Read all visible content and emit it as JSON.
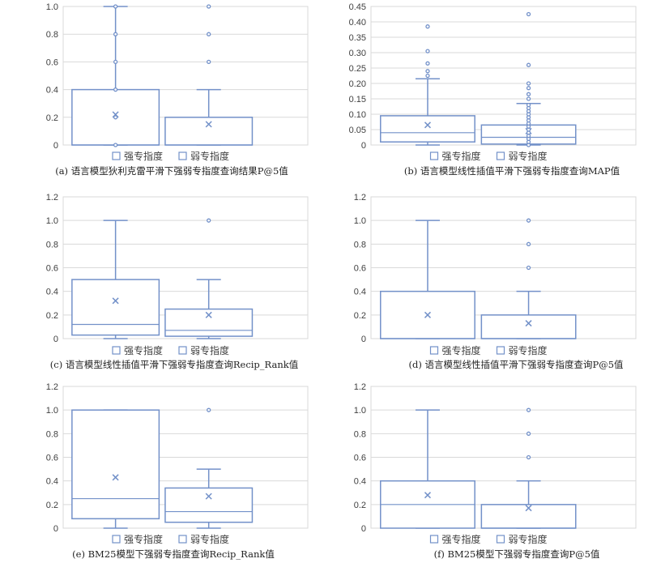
{
  "style": {
    "series_color": "#7391c9",
    "grid_color": "#d9d9d9",
    "text_color": "#404040"
  },
  "chart_data": [
    {
      "type": "box",
      "caption": "(a) 语言模型狄利克雷平滑下强弱专指度查询结果P@5值",
      "ylim": [
        0,
        1.0
      ],
      "yticks": [
        "0",
        "0.2",
        "0.4",
        "0.6",
        "0.8",
        "1.0"
      ],
      "legend": [
        "强专指度",
        "弱专指度"
      ],
      "series": [
        {
          "name": "强专指度",
          "min": 0,
          "q1": 0,
          "median": 0,
          "q3": 0.4,
          "max": 1.0,
          "mean": 0.22,
          "outliers": [
            0,
            0.2,
            0.4,
            0.6,
            0.8,
            1.0
          ]
        },
        {
          "name": "弱专指度",
          "min": 0,
          "q1": 0,
          "median": 0,
          "q3": 0.2,
          "max": 0.4,
          "mean": 0.15,
          "outliers": [
            0.6,
            0.8,
            1.0
          ]
        }
      ]
    },
    {
      "type": "box",
      "caption": "(b) 语言模型线性插值平滑下强弱专指度查询MAP值",
      "ylim": [
        0,
        0.45
      ],
      "yticks": [
        "0",
        "0.05",
        "0.10",
        "0.15",
        "0.20",
        "0.25",
        "0.30",
        "0.35",
        "0.40",
        "0.45"
      ],
      "legend": [
        "强专指度",
        "弱专指度"
      ],
      "series": [
        {
          "name": "强专指度",
          "min": 0,
          "q1": 0.01,
          "median": 0.04,
          "q3": 0.095,
          "max": 0.215,
          "mean": 0.065,
          "outliers": [
            0.225,
            0.24,
            0.265,
            0.305,
            0.385
          ]
        },
        {
          "name": "弱专指度",
          "min": 0,
          "q1": 0.003,
          "median": 0.025,
          "q3": 0.065,
          "max": 0.135,
          "mean": 0.045,
          "outliers": [
            0,
            0.01,
            0.02,
            0.03,
            0.04,
            0.05,
            0.06,
            0.07,
            0.08,
            0.09,
            0.1,
            0.11,
            0.12,
            0.13,
            0.15,
            0.165,
            0.185,
            0.2,
            0.26,
            0.425
          ]
        }
      ]
    },
    {
      "type": "box",
      "caption": "(c) 语言模型线性插值平滑下强弱专指度查询Recip_Rank值",
      "ylim": [
        0,
        1.2
      ],
      "yticks": [
        "0",
        "0.2",
        "0.4",
        "0.6",
        "0.8",
        "1.0",
        "1.2"
      ],
      "legend": [
        "强专指度",
        "弱专指度"
      ],
      "series": [
        {
          "name": "强专指度",
          "min": 0,
          "q1": 0.03,
          "median": 0.12,
          "q3": 0.5,
          "max": 1.0,
          "mean": 0.32,
          "outliers": []
        },
        {
          "name": "弱专指度",
          "min": 0,
          "q1": 0.02,
          "median": 0.07,
          "q3": 0.25,
          "max": 0.5,
          "mean": 0.2,
          "outliers": [
            1.0
          ]
        }
      ]
    },
    {
      "type": "box",
      "caption": "(d) 语言模型线性插值平滑下强弱专指度查询P@5值",
      "ylim": [
        0,
        1.2
      ],
      "yticks": [
        "0",
        "0.2",
        "0.4",
        "0.6",
        "0.8",
        "1.0",
        "1.2"
      ],
      "legend": [
        "强专指度",
        "弱专指度"
      ],
      "series": [
        {
          "name": "强专指度",
          "min": 0,
          "q1": 0,
          "median": 0,
          "q3": 0.4,
          "max": 1.0,
          "mean": 0.2,
          "outliers": []
        },
        {
          "name": "弱专指度",
          "min": 0,
          "q1": 0,
          "median": 0,
          "q3": 0.2,
          "max": 0.4,
          "mean": 0.13,
          "outliers": [
            0.6,
            0.8,
            1.0
          ]
        }
      ]
    },
    {
      "type": "box",
      "caption": "(e) BM25模型下强弱专指度查询Recip_Rank值",
      "ylim": [
        0,
        1.2
      ],
      "yticks": [
        "0",
        "0.2",
        "0.4",
        "0.6",
        "0.8",
        "1.0",
        "1.2"
      ],
      "legend": [
        "强专指度",
        "弱专指度"
      ],
      "series": [
        {
          "name": "强专指度",
          "min": 0,
          "q1": 0.08,
          "median": 0.25,
          "q3": 1.0,
          "max": 1.0,
          "mean": 0.43,
          "outliers": []
        },
        {
          "name": "弱专指度",
          "min": 0,
          "q1": 0.05,
          "median": 0.14,
          "q3": 0.34,
          "max": 0.5,
          "mean": 0.27,
          "outliers": [
            1.0
          ]
        }
      ]
    },
    {
      "type": "box",
      "caption": "(f) BM25模型下强弱专指度查询P@5值",
      "ylim": [
        0,
        1.2
      ],
      "yticks": [
        "0",
        "0.2",
        "0.4",
        "0.6",
        "0.8",
        "1.0",
        "1.2"
      ],
      "legend": [
        "强专指度",
        "弱专指度"
      ],
      "series": [
        {
          "name": "强专指度",
          "min": 0,
          "q1": 0,
          "median": 0.2,
          "q3": 0.4,
          "max": 1.0,
          "mean": 0.28,
          "outliers": []
        },
        {
          "name": "弱专指度",
          "min": 0,
          "q1": 0,
          "median": 0,
          "q3": 0.2,
          "max": 0.4,
          "mean": 0.17,
          "outliers": [
            0.6,
            0.8,
            1.0
          ]
        }
      ]
    }
  ]
}
